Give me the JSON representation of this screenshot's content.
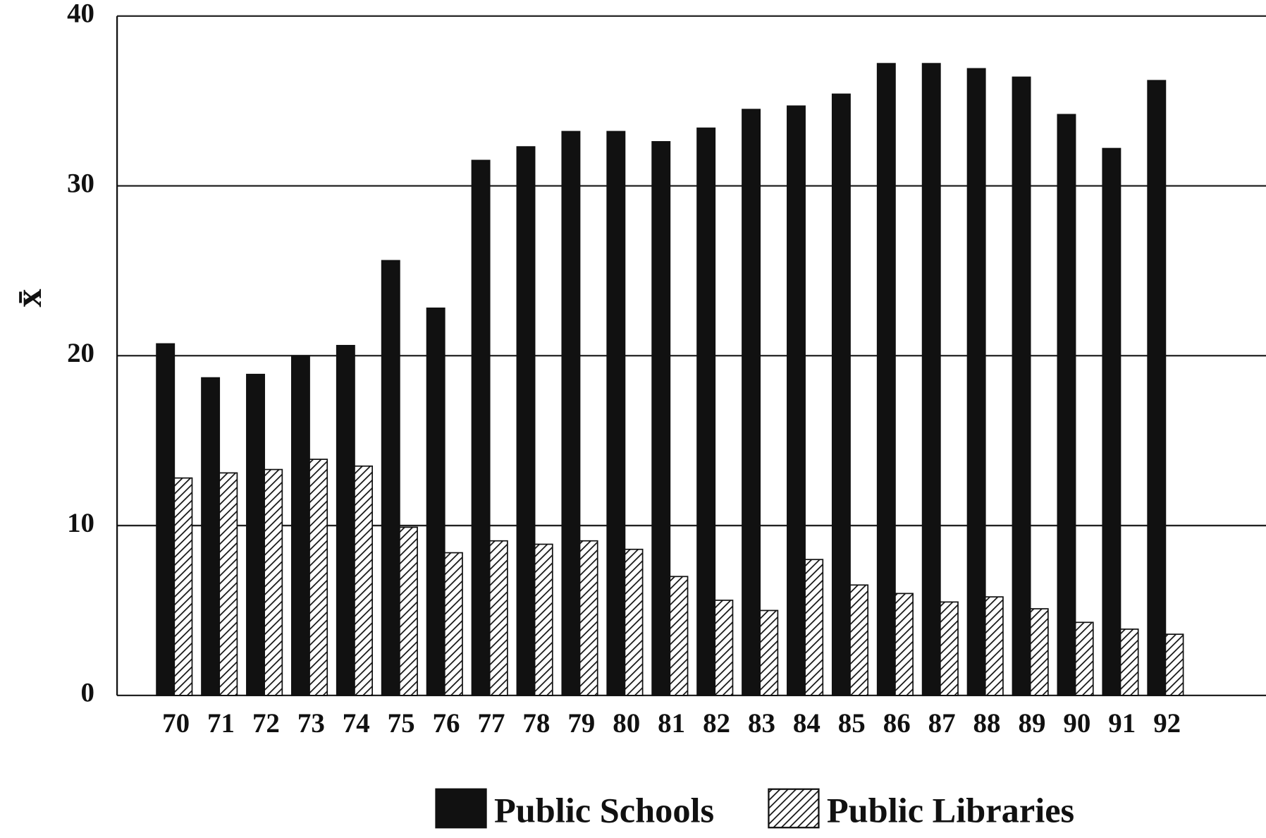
{
  "chart_data": {
    "type": "bar",
    "y_label": "x̄",
    "categories": [
      "70",
      "71",
      "72",
      "73",
      "74",
      "75",
      "76",
      "77",
      "78",
      "79",
      "80",
      "81",
      "82",
      "83",
      "84",
      "85",
      "86",
      "87",
      "88",
      "89",
      "90",
      "91",
      "92"
    ],
    "series": [
      {
        "name": "Public Schools",
        "color": "#111111",
        "pattern": "solid",
        "values": [
          20.7,
          18.7,
          18.9,
          20.0,
          20.6,
          25.6,
          22.8,
          31.5,
          32.3,
          33.2,
          33.2,
          32.6,
          33.4,
          34.5,
          34.7,
          35.4,
          37.2,
          37.2,
          36.9,
          36.4,
          34.2,
          32.2,
          36.2
        ]
      },
      {
        "name": "Public Libraries",
        "color": "#111111",
        "pattern": "hatch",
        "values": [
          12.8,
          13.1,
          13.3,
          13.9,
          13.5,
          9.9,
          8.4,
          9.1,
          8.9,
          9.1,
          8.6,
          7.0,
          5.6,
          5.0,
          8.0,
          6.5,
          6.0,
          5.5,
          5.8,
          5.1,
          4.3,
          3.9,
          3.6
        ]
      }
    ],
    "ylim": [
      0,
      40
    ],
    "yticks": [
      0,
      10,
      20,
      30,
      40
    ],
    "grid": true,
    "legend": "bottom"
  }
}
